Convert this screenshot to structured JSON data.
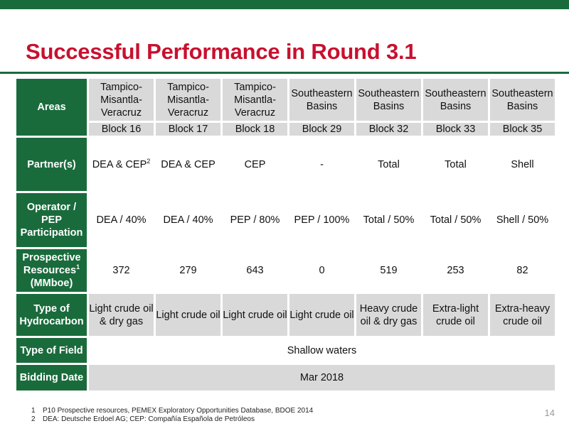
{
  "slide": {
    "title": "Successful Performance in Round 3.1",
    "page_number": "14",
    "colors": {
      "brand_green": "#1a6b3c",
      "title_red": "#c8102e",
      "cell_gray": "#d9d9d9"
    }
  },
  "table": {
    "row_headers": {
      "areas": "Areas",
      "partners": "Partner(s)",
      "operator": "Operator / PEP Participation",
      "resources": "Prospective Resources",
      "resources_sup": "1",
      "resources_unit": "(MMboe)",
      "hydrocarbon": "Type of Hydrocarbon",
      "field": "Type of Field",
      "bidding": "Bidding Date"
    },
    "columns": [
      {
        "area": "Tampico-Misantla-Veracruz",
        "block": "Block 16",
        "partner": "DEA & CEP",
        "partner_sup": "2",
        "operator": "DEA / 40%",
        "resources": "372",
        "hydrocarbon": "Light crude oil & dry gas"
      },
      {
        "area": "Tampico-Misantla-Veracruz",
        "block": "Block 17",
        "partner": "DEA & CEP",
        "partner_sup": "",
        "operator": "DEA / 40%",
        "resources": "279",
        "hydrocarbon": "Light crude oil"
      },
      {
        "area": "Tampico-Misantla-Veracruz",
        "block": "Block 18",
        "partner": "CEP",
        "partner_sup": "",
        "operator": "PEP / 80%",
        "resources": "643",
        "hydrocarbon": "Light crude oil"
      },
      {
        "area": "Southeastern Basins",
        "block": "Block 29",
        "partner": "-",
        "partner_sup": "",
        "operator": "PEP / 100%",
        "resources": "0",
        "hydrocarbon": "Light crude oil"
      },
      {
        "area": "Southeastern Basins",
        "block": "Block 32",
        "partner": "Total",
        "partner_sup": "",
        "operator": "Total / 50%",
        "resources": "519",
        "hydrocarbon": "Heavy crude oil & dry gas"
      },
      {
        "area": "Southeastern Basins",
        "block": "Block 33",
        "partner": "Total",
        "partner_sup": "",
        "operator": "Total / 50%",
        "resources": "253",
        "hydrocarbon": "Extra-light crude oil"
      },
      {
        "area": "Southeastern Basins",
        "block": "Block 35",
        "partner": "Shell",
        "partner_sup": "",
        "operator": "Shell / 50%",
        "resources": "82",
        "hydrocarbon": "Extra-heavy crude oil"
      }
    ],
    "field_type": "Shallow waters",
    "bidding_date": "Mar 2018"
  },
  "footnotes": [
    {
      "num": "1",
      "text": "P10 Prospective resources, PEMEX Exploratory Opportunities Database, BDOE 2014"
    },
    {
      "num": "2",
      "text": "DEA: Deutsche Erdoel AG; CEP: Compañía Española de Petróleos"
    }
  ]
}
